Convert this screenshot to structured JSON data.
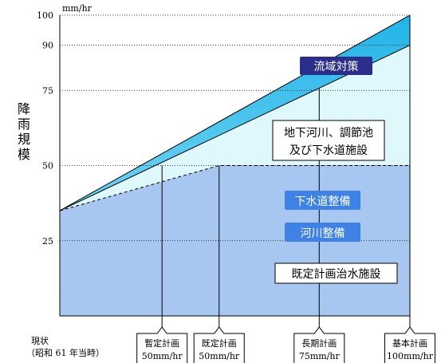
{
  "chart_data": {
    "type": "area",
    "unit": "mm/hr",
    "y_label": "降雨規模",
    "ylim": [
      0,
      100
    ],
    "y_ticks": [
      "100",
      "90",
      "75",
      "50",
      "25"
    ],
    "y_tick_values": [
      100,
      90,
      75,
      50,
      25
    ],
    "x_points": [
      {
        "label": "現状",
        "sub": "（昭和 61 年当時）"
      },
      {
        "label": "暫定計画",
        "sub": "50mm/hr"
      },
      {
        "label": "既定計画",
        "sub": "50mm/hr"
      },
      {
        "label": "長期計画",
        "sub": "75mm/hr"
      },
      {
        "label": "基本計画",
        "sub": "100mm/hr"
      }
    ],
    "x_values": [
      0,
      0.292,
      0.455,
      0.741,
      1
    ],
    "series": [
      {
        "name": "既定計画治水施設",
        "x": [
          0,
          0.455,
          1
        ],
        "values": [
          35,
          50,
          50
        ],
        "color": "#a7c7f0"
      },
      {
        "name": "地下河川、調節池及び下水道施設",
        "x": [
          0,
          1
        ],
        "values": [
          35,
          90
        ],
        "color": "#dff8fb"
      },
      {
        "name": "流域対策",
        "x": [
          0,
          1
        ],
        "values": [
          35,
          100
        ],
        "color": "#3fc4ec"
      }
    ],
    "labels": {
      "basin": "流域対策",
      "underground_line1": "地下河川、調節池",
      "underground_line2": "及び下水道施設",
      "sewer": "下水道整備",
      "river": "河川整備",
      "existing": "既定計画治水施設"
    },
    "colors": {
      "existing_fill": "#a7c7f0",
      "underground_fill": "#dff8fb",
      "basin_fill": "#3fc4ec",
      "basin_box": "#2b2e8a",
      "sewer_box": "#3f82e6",
      "river_box": "#3f82e6"
    },
    "grid": "dotted"
  }
}
